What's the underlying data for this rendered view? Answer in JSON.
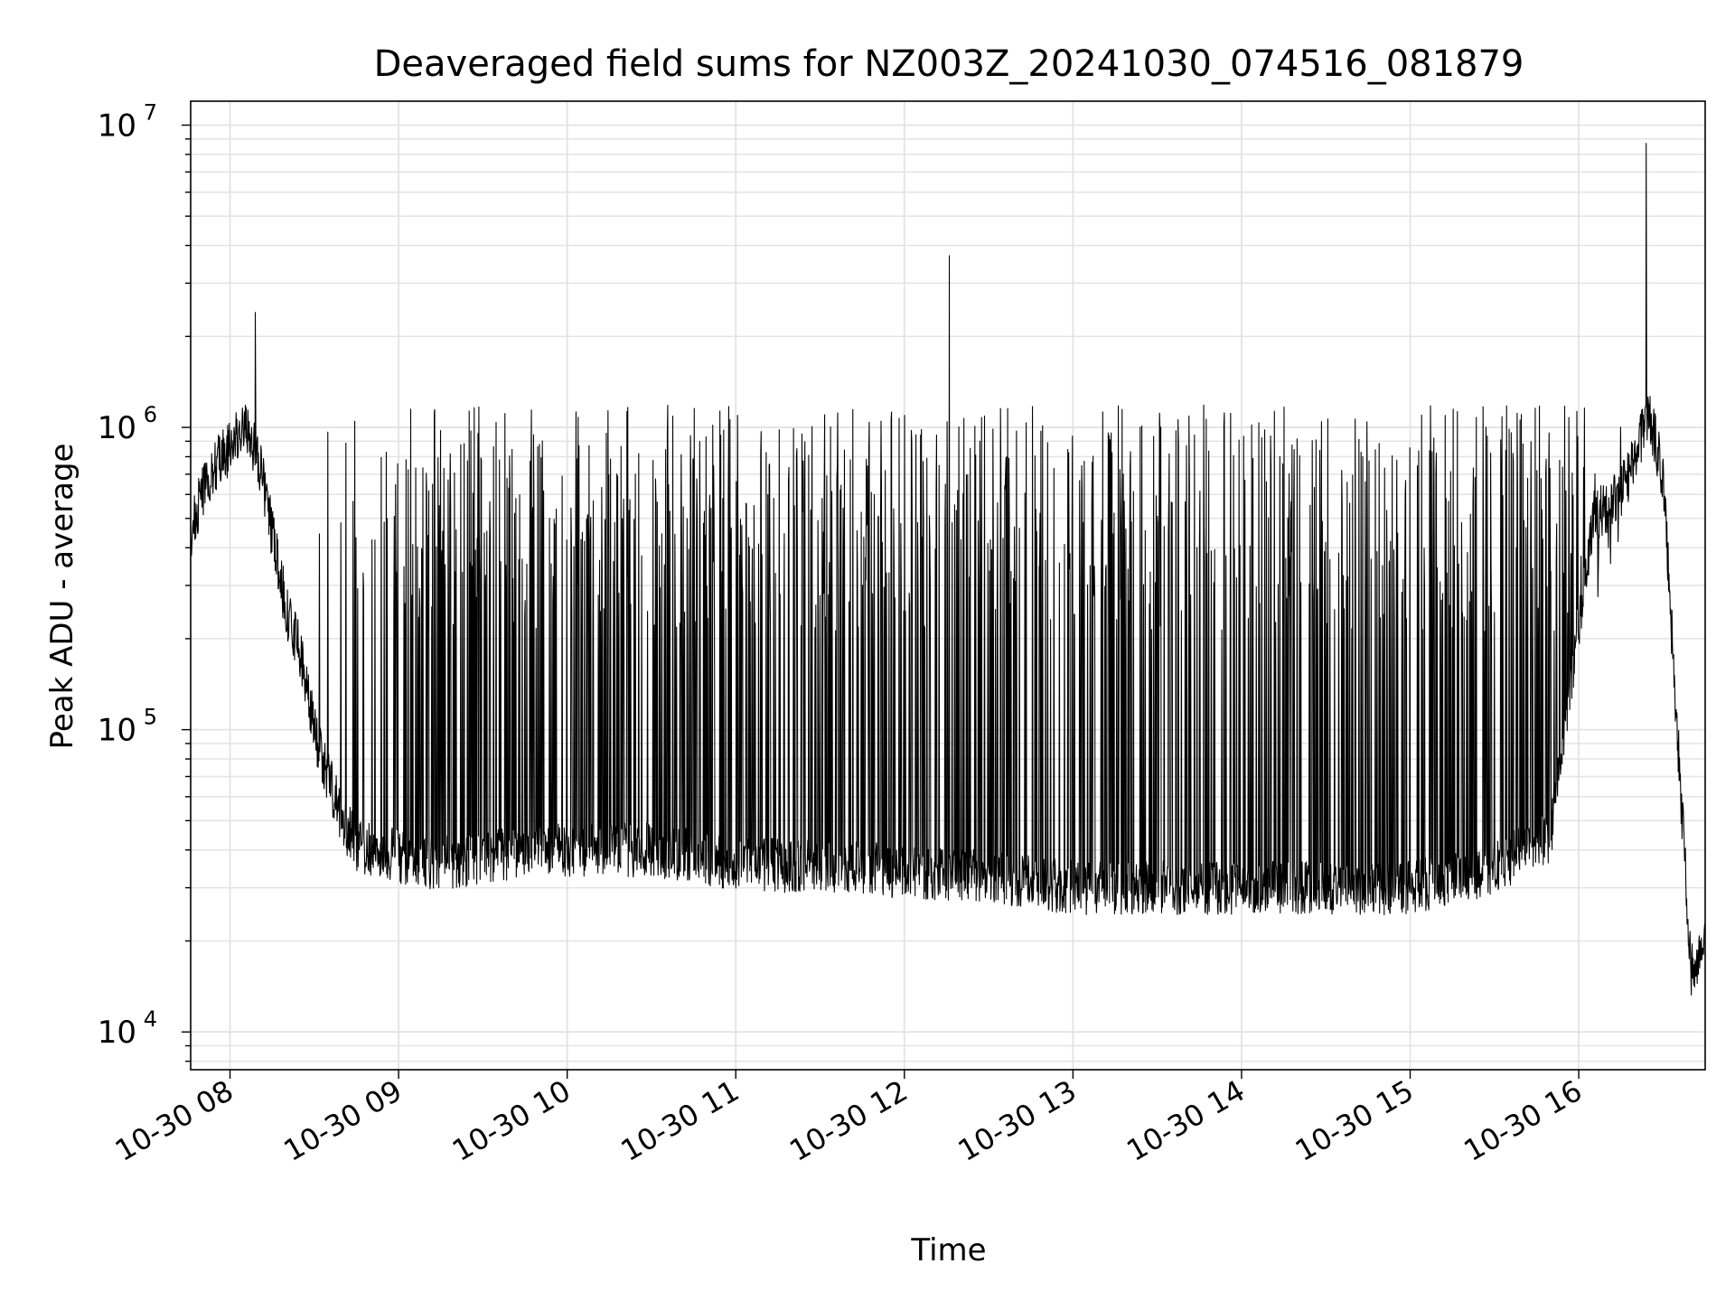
{
  "chart_data": {
    "type": "line",
    "title": "Deaveraged field sums for NZ003Z_20241030_074516_081879",
    "xlabel": "Time",
    "ylabel": "Peak ADU - average",
    "y_scale": "log",
    "ylim": [
      7500,
      12000000
    ],
    "xlim": [
      "2024-10-30 07:46",
      "2024-10-30 16:45"
    ],
    "grid": "major and minor",
    "line_color": "#000000",
    "x_ticks": [
      {
        "value": "2024-10-30 08:00",
        "label": "10-30 08"
      },
      {
        "value": "2024-10-30 09:00",
        "label": "10-30 09"
      },
      {
        "value": "2024-10-30 10:00",
        "label": "10-30 10"
      },
      {
        "value": "2024-10-30 11:00",
        "label": "10-30 11"
      },
      {
        "value": "2024-10-30 12:00",
        "label": "10-30 12"
      },
      {
        "value": "2024-10-30 13:00",
        "label": "10-30 13"
      },
      {
        "value": "2024-10-30 14:00",
        "label": "10-30 14"
      },
      {
        "value": "2024-10-30 15:00",
        "label": "10-30 15"
      },
      {
        "value": "2024-10-30 16:00",
        "label": "10-30 16"
      }
    ],
    "y_ticks": [
      {
        "value": 10000,
        "mantissa": "10",
        "exp": "4"
      },
      {
        "value": 100000,
        "mantissa": "10",
        "exp": "5"
      },
      {
        "value": 1000000,
        "mantissa": "10",
        "exp": "6"
      },
      {
        "value": 10000000,
        "mantissa": "10",
        "exp": "7"
      }
    ],
    "series": [
      {
        "description": "approximate envelope of noisy trace",
        "x": [
          "2024-10-30 07:46",
          "2024-10-30 07:50",
          "2024-10-30 07:55",
          "2024-10-30 08:00",
          "2024-10-30 08:05",
          "2024-10-30 08:10",
          "2024-10-30 08:15",
          "2024-10-30 08:20",
          "2024-10-30 08:25",
          "2024-10-30 08:30",
          "2024-10-30 08:35",
          "2024-10-30 08:40",
          "2024-10-30 08:45",
          "2024-10-30 08:50",
          "2024-10-30 09:00",
          "2024-10-30 09:15",
          "2024-10-30 09:30",
          "2024-10-30 10:00",
          "2024-10-30 10:30",
          "2024-10-30 11:00",
          "2024-10-30 11:30",
          "2024-10-30 12:00",
          "2024-10-30 12:30",
          "2024-10-30 13:00",
          "2024-10-30 13:30",
          "2024-10-30 14:00",
          "2024-10-30 14:30",
          "2024-10-30 15:00",
          "2024-10-30 15:30",
          "2024-10-30 15:50",
          "2024-10-30 16:05",
          "2024-10-30 16:15",
          "2024-10-30 16:20",
          "2024-10-30 16:25",
          "2024-10-30 16:30",
          "2024-10-30 16:35",
          "2024-10-30 16:40",
          "2024-10-30 16:45"
        ],
        "y": [
          450000,
          600000,
          750000,
          850000,
          1000000,
          800000,
          450000,
          250000,
          180000,
          100000,
          70000,
          50000,
          42000,
          40000,
          38000,
          36000,
          38000,
          40000,
          40000,
          36000,
          35000,
          34000,
          33000,
          30000,
          30000,
          30000,
          30000,
          30000,
          35000,
          45000,
          500000,
          600000,
          800000,
          1100000,
          700000,
          100000,
          16000,
          20000
        ]
      }
    ],
    "spikes": [
      {
        "x": "2024-10-30 08:09",
        "y": 2400000
      },
      {
        "x": "2024-10-30 12:16",
        "y": 3700000
      },
      {
        "x": "2024-10-30 16:24",
        "y": 8700000
      }
    ]
  }
}
